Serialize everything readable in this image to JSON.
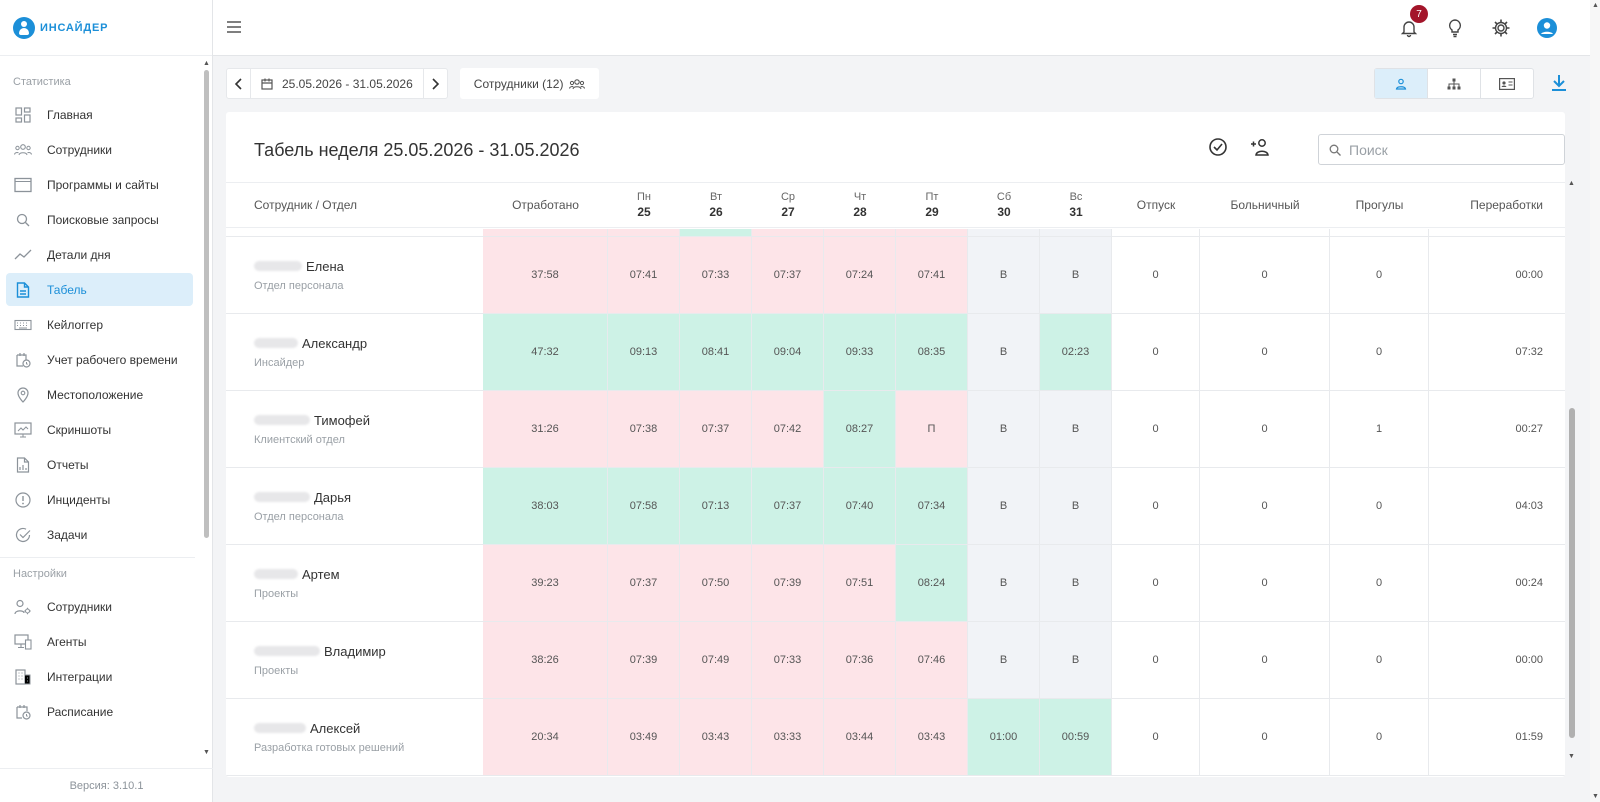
{
  "app": {
    "logo_text": "ИНСАЙДЕР",
    "version": "Версия: 3.10.1",
    "accent": "#1c8fd8"
  },
  "topbar": {
    "notification_count": "7"
  },
  "sidebar": {
    "section_stats": "Статистика",
    "stats_items": [
      {
        "label": "Главная",
        "icon": "dashboard-icon"
      },
      {
        "label": "Сотрудники",
        "icon": "employees-icon"
      },
      {
        "label": "Программы и сайты",
        "icon": "window-icon"
      },
      {
        "label": "Поисковые запросы",
        "icon": "search-icon"
      },
      {
        "label": "Детали дня",
        "icon": "trend-icon"
      },
      {
        "label": "Табель",
        "icon": "document-icon",
        "active": true
      },
      {
        "label": "Кейлоггер",
        "icon": "keyboard-icon"
      },
      {
        "label": "Учет рабочего времени",
        "icon": "time-tracking-icon"
      },
      {
        "label": "Местоположение",
        "icon": "location-icon"
      },
      {
        "label": "Скриншоты",
        "icon": "screenshot-icon"
      },
      {
        "label": "Отчеты",
        "icon": "report-icon"
      },
      {
        "label": "Инциденты",
        "icon": "alert-icon"
      },
      {
        "label": "Задачи",
        "icon": "task-icon"
      }
    ],
    "section_settings": "Настройки",
    "settings_items": [
      {
        "label": "Сотрудники",
        "icon": "user-settings-icon"
      },
      {
        "label": "Агенты",
        "icon": "agents-icon"
      },
      {
        "label": "Интеграции",
        "icon": "integrations-icon"
      },
      {
        "label": "Расписание",
        "icon": "schedule-icon"
      }
    ]
  },
  "toolbar": {
    "date_range": "25.05.2026 - 31.05.2026",
    "employees_label": "Сотрудники (12)"
  },
  "card": {
    "title": "Табель неделя 25.05.2026 - 31.05.2026",
    "search_placeholder": "Поиск"
  },
  "table": {
    "headers": {
      "name": "Сотрудник / Отдел",
      "worked": "Отработано",
      "vacation": "Отпуск",
      "sick": "Больничный",
      "absences": "Прогулы",
      "overtime": "Переработки"
    },
    "days": [
      {
        "name": "Пн",
        "num": "25"
      },
      {
        "name": "Вт",
        "num": "26"
      },
      {
        "name": "Ср",
        "num": "27"
      },
      {
        "name": "Чт",
        "num": "28"
      },
      {
        "name": "Пт",
        "num": "29"
      },
      {
        "name": "Сб",
        "num": "30"
      },
      {
        "name": "Вс",
        "num": "31"
      }
    ],
    "rows": [
      {
        "name": "Елена",
        "dept": "Отдел персонала",
        "worked": "37:58",
        "worked_status": "red",
        "days": [
          [
            "07:41",
            "red"
          ],
          [
            "07:33",
            "red"
          ],
          [
            "07:37",
            "red"
          ],
          [
            "07:24",
            "red"
          ],
          [
            "07:41",
            "red"
          ],
          [
            "В",
            "gray"
          ],
          [
            "В",
            "gray"
          ]
        ],
        "vacation": "0",
        "sick": "0",
        "absences": "0",
        "overtime": "00:00"
      },
      {
        "name": "Александр",
        "dept": "Инсайдер",
        "worked": "47:32",
        "worked_status": "green",
        "days": [
          [
            "09:13",
            "green"
          ],
          [
            "08:41",
            "green"
          ],
          [
            "09:04",
            "green"
          ],
          [
            "09:33",
            "green"
          ],
          [
            "08:35",
            "green"
          ],
          [
            "В",
            "gray"
          ],
          [
            "02:23",
            "green"
          ]
        ],
        "vacation": "0",
        "sick": "0",
        "absences": "0",
        "overtime": "07:32"
      },
      {
        "name": "Тимофей",
        "dept": "Клиентский отдел",
        "worked": "31:26",
        "worked_status": "red",
        "days": [
          [
            "07:38",
            "red"
          ],
          [
            "07:37",
            "red"
          ],
          [
            "07:42",
            "red"
          ],
          [
            "08:27",
            "green"
          ],
          [
            "П",
            "red"
          ],
          [
            "В",
            "gray"
          ],
          [
            "В",
            "gray"
          ]
        ],
        "vacation": "0",
        "sick": "0",
        "absences": "1",
        "overtime": "00:27"
      },
      {
        "name": "Дарья",
        "dept": "Отдел персонала",
        "worked": "38:03",
        "worked_status": "green",
        "days": [
          [
            "07:58",
            "green"
          ],
          [
            "07:13",
            "green"
          ],
          [
            "07:37",
            "green"
          ],
          [
            "07:40",
            "green"
          ],
          [
            "07:34",
            "green"
          ],
          [
            "В",
            "gray"
          ],
          [
            "В",
            "gray"
          ]
        ],
        "vacation": "0",
        "sick": "0",
        "absences": "0",
        "overtime": "04:03"
      },
      {
        "name": "Артем",
        "dept": "Проекты",
        "worked": "39:23",
        "worked_status": "red",
        "days": [
          [
            "07:37",
            "red"
          ],
          [
            "07:50",
            "red"
          ],
          [
            "07:39",
            "red"
          ],
          [
            "07:51",
            "red"
          ],
          [
            "08:24",
            "green"
          ],
          [
            "В",
            "gray"
          ],
          [
            "В",
            "gray"
          ]
        ],
        "vacation": "0",
        "sick": "0",
        "absences": "0",
        "overtime": "00:24"
      },
      {
        "name": "Владимир",
        "dept": "Проекты",
        "worked": "38:26",
        "worked_status": "red",
        "days": [
          [
            "07:39",
            "red"
          ],
          [
            "07:49",
            "red"
          ],
          [
            "07:33",
            "red"
          ],
          [
            "07:36",
            "red"
          ],
          [
            "07:46",
            "red"
          ],
          [
            "В",
            "gray"
          ],
          [
            "В",
            "gray"
          ]
        ],
        "vacation": "0",
        "sick": "0",
        "absences": "0",
        "overtime": "00:00"
      },
      {
        "name": "Алексей",
        "dept": "Разработка готовых решений",
        "worked": "20:34",
        "worked_status": "red",
        "days": [
          [
            "03:49",
            "red"
          ],
          [
            "03:43",
            "red"
          ],
          [
            "03:33",
            "red"
          ],
          [
            "03:44",
            "red"
          ],
          [
            "03:43",
            "red"
          ],
          [
            "01:00",
            "green"
          ],
          [
            "00:59",
            "green"
          ]
        ],
        "vacation": "0",
        "sick": "0",
        "absences": "0",
        "overtime": "01:59"
      }
    ]
  }
}
